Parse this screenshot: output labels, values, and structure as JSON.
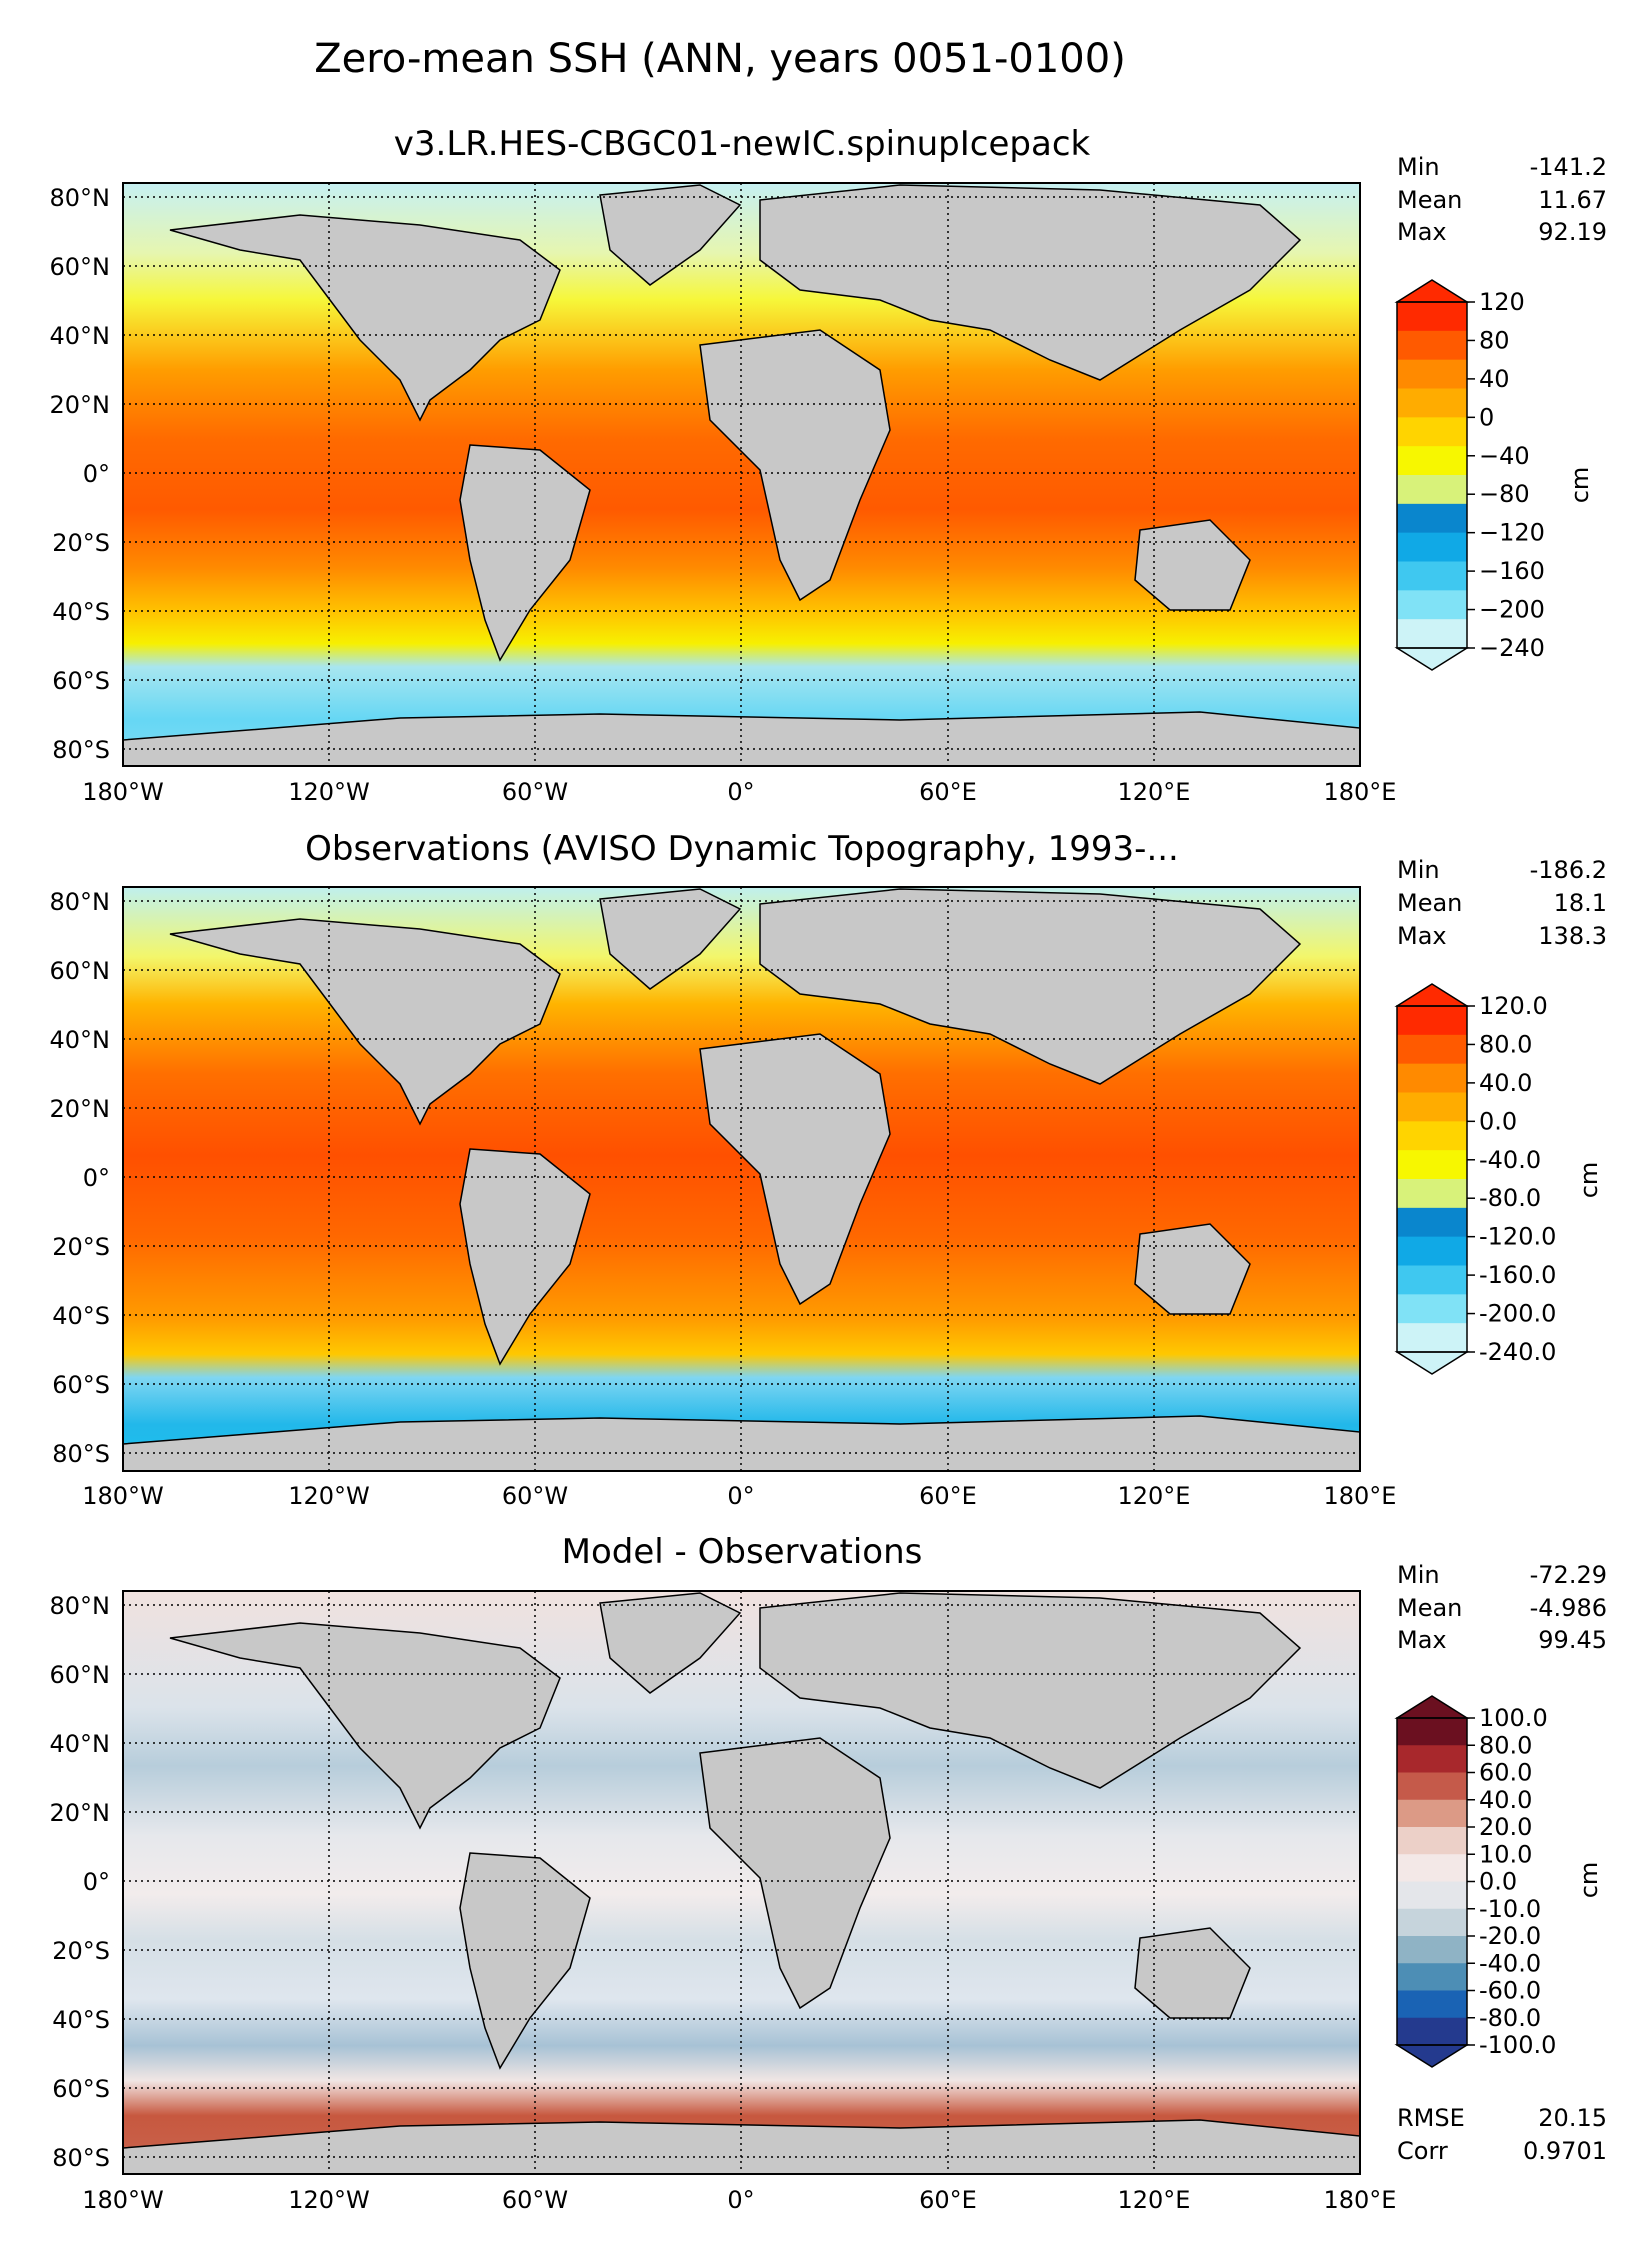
{
  "figure": {
    "title": "Zero-mean SSH (ANN, years 0051-0100)"
  },
  "axes": {
    "lon_ticks": [
      "180°W",
      "120°W",
      "60°W",
      "0°",
      "60°E",
      "120°E",
      "180°E"
    ],
    "lat_ticks": [
      "80°N",
      "60°N",
      "40°N",
      "20°N",
      "0°",
      "20°S",
      "40°S",
      "60°S",
      "80°S"
    ]
  },
  "panels": [
    {
      "title": "v3.LR.HES-CBGC01-newIC.spinupIcepack",
      "stats": [
        [
          "Min",
          "-141.2"
        ],
        [
          "Mean",
          "11.67"
        ],
        [
          "Max",
          "92.19"
        ]
      ],
      "colorbar": {
        "unit": "cm",
        "labels": [
          "120",
          "80",
          "40",
          "0",
          "−40",
          "−80",
          "−120",
          "−160",
          "−200",
          "−240"
        ],
        "palette": "ssh"
      }
    },
    {
      "title": "Observations (AVISO Dynamic Topography, 1993-...",
      "stats": [
        [
          "Min",
          "-186.2"
        ],
        [
          "Mean",
          "18.1"
        ],
        [
          "Max",
          "138.3"
        ]
      ],
      "colorbar": {
        "unit": "cm",
        "labels": [
          "120.0",
          "80.0",
          "40.0",
          "0.0",
          "-40.0",
          "-80.0",
          "-120.0",
          "-160.0",
          "-200.0",
          "-240.0"
        ],
        "palette": "ssh"
      }
    },
    {
      "title": "Model - Observations",
      "stats": [
        [
          "Min",
          "-72.29"
        ],
        [
          "Mean",
          "-4.986"
        ],
        [
          "Max",
          "99.45"
        ]
      ],
      "colorbar": {
        "unit": "cm",
        "labels": [
          "100.0",
          "80.0",
          "60.0",
          "40.0",
          "20.0",
          "10.0",
          "0.0",
          "-10.0",
          "-20.0",
          "-40.0",
          "-60.0",
          "-80.0",
          "-100.0"
        ],
        "palette": "diff"
      },
      "metrics": [
        [
          "RMSE",
          "20.15"
        ],
        [
          "Corr",
          "0.9701"
        ]
      ]
    }
  ],
  "colors": {
    "land": "#c8c8c8",
    "ssh_ramp": [
      "#cdf3f7",
      "#80e2f6",
      "#3fc8f0",
      "#10a9e6",
      "#0a86cd",
      "#d8f27a",
      "#f7f700",
      "#ffd400",
      "#ffac00",
      "#ff8a00",
      "#ff5a00",
      "#ff2a00"
    ],
    "diff_ramp": [
      "#6b1020",
      "#a8282c",
      "#c55a4a",
      "#dc9a86",
      "#ecd0c8",
      "#f3e8e7",
      "#e4e6ea",
      "#c6d4dc",
      "#8fb3c5",
      "#4d8eb5",
      "#1a63b4",
      "#243a8e"
    ]
  }
}
